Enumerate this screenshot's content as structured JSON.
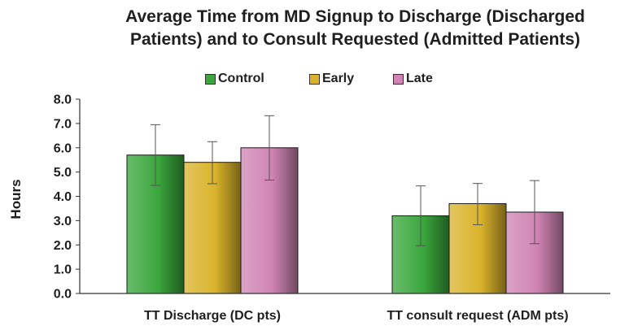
{
  "chart_data": {
    "type": "bar",
    "title_lines": [
      "Average Time from MD Signup to Discharge (Discharged",
      "Patients) and to Consult Requested (Admitted Patients)"
    ],
    "xlabel": "",
    "ylabel": "Hours",
    "ylim": [
      0,
      8
    ],
    "yticks": [
      "0.0",
      "1.0",
      "2.0",
      "3.0",
      "4.0",
      "5.0",
      "6.0",
      "7.0",
      "8.0"
    ],
    "grid": false,
    "legend_position": "top",
    "categories": [
      "TT Discharge (DC pts)",
      "TT consult request (ADM pts)"
    ],
    "series": [
      {
        "name": "Control",
        "color": "#3aa63c",
        "values": [
          5.7,
          3.2
        ],
        "err_low": [
          4.45,
          1.97
        ],
        "err_high": [
          6.95,
          4.43
        ]
      },
      {
        "name": "Early",
        "color": "#d9b32b",
        "values": [
          5.4,
          3.7
        ],
        "err_low": [
          4.52,
          2.83
        ],
        "err_high": [
          6.25,
          4.53
        ]
      },
      {
        "name": "Late",
        "color": "#cf84b3",
        "values": [
          6.0,
          3.35
        ],
        "err_low": [
          4.67,
          2.05
        ],
        "err_high": [
          7.32,
          4.65
        ]
      }
    ]
  }
}
